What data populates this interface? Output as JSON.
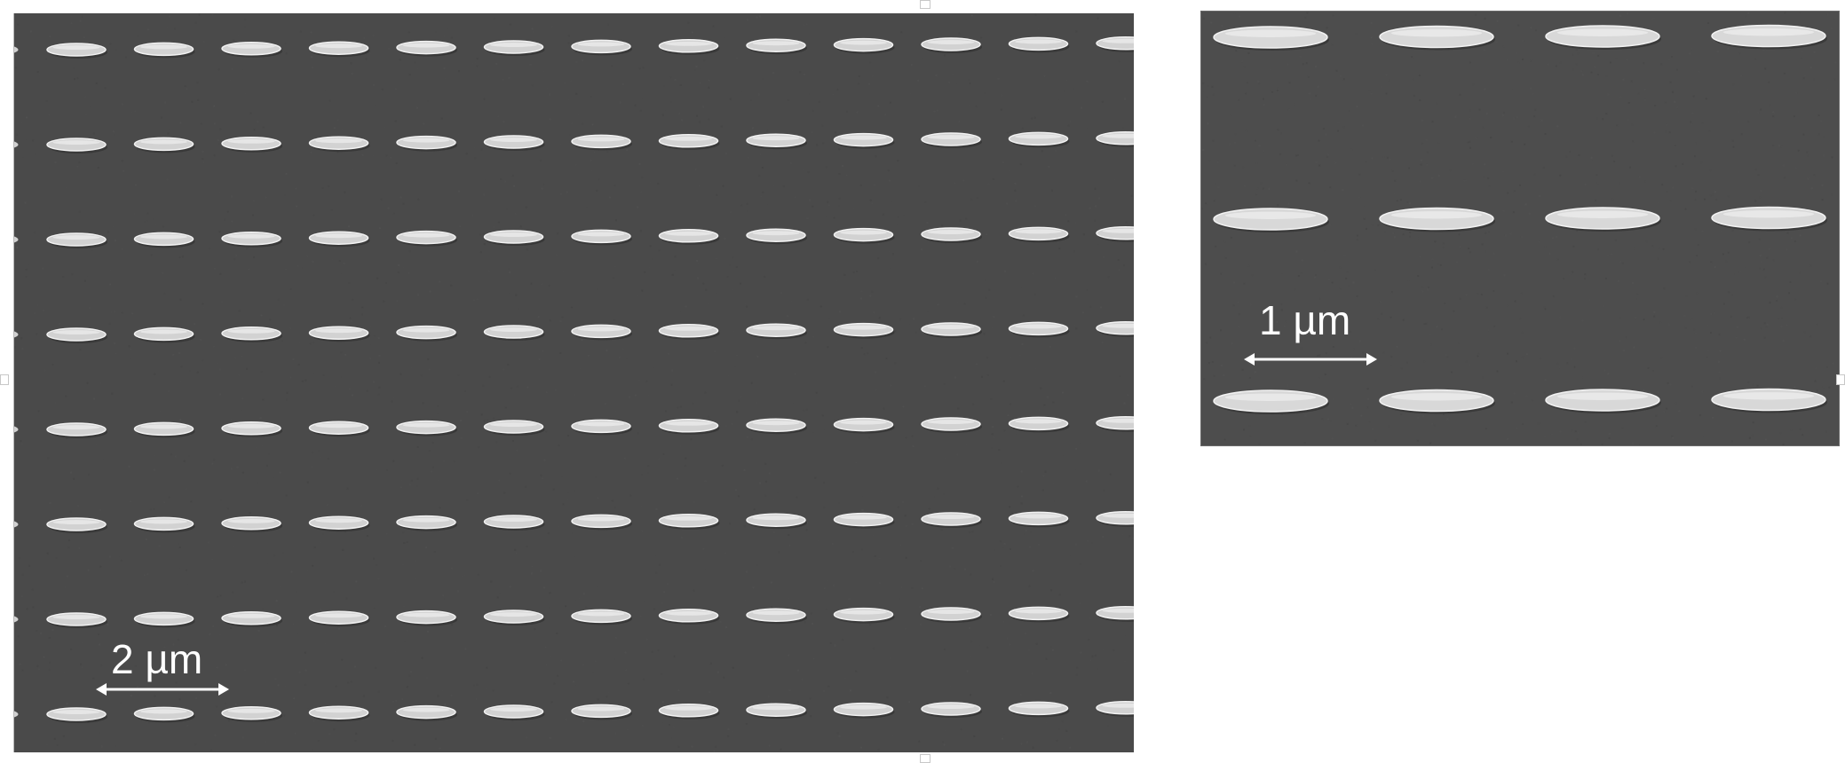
{
  "panels": {
    "left": {
      "scale_bar_label": "2 µm",
      "array_rows": 8,
      "array_columns": 13,
      "background_color": "#4a4a4a",
      "particle_color": "#d2d2d2"
    },
    "right": {
      "scale_bar_label": "1 µm",
      "array_rows": 3,
      "array_columns": 4,
      "background_color": "#4d4d4d",
      "particle_color": "#d8d8d8"
    }
  }
}
